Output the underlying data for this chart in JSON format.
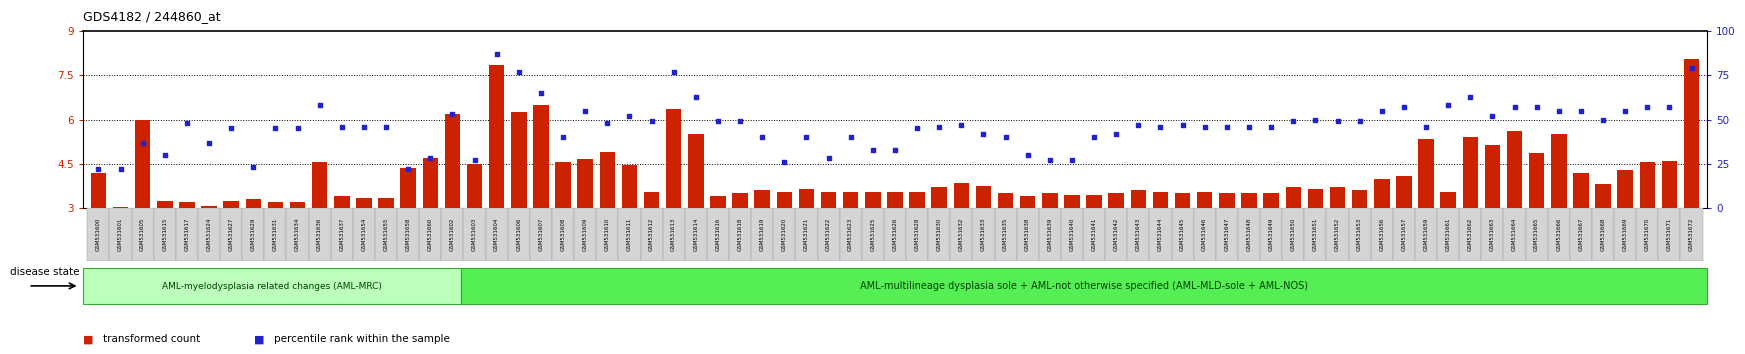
{
  "title": "GDS4182 / 244860_at",
  "ylim_left": [
    3,
    9
  ],
  "ylim_right": [
    0,
    100
  ],
  "yticks_left": [
    3,
    4.5,
    6,
    7.5,
    9
  ],
  "yticks_right": [
    0,
    25,
    50,
    75,
    100
  ],
  "hlines": [
    4.5,
    6,
    7.5
  ],
  "bar_color": "#cc2200",
  "dot_color": "#2222cc",
  "bg_color": "#ffffff",
  "group1_label": "AML-myelodysplasia related changes (AML-MRC)",
  "group2_label": "AML-multilineage dysplasia sole + AML-not otherwise specified (AML-MLD-sole + AML-NOS)",
  "disease_state_label": "disease state",
  "legend_bar": "transformed count",
  "legend_dot": "percentile rank within the sample",
  "group1_color": "#bbffbb",
  "group2_color": "#55ee55",
  "group1_n": 17,
  "samples": [
    "GSM531600",
    "GSM531601",
    "GSM531605",
    "GSM531615",
    "GSM531617",
    "GSM531624",
    "GSM531627",
    "GSM531629",
    "GSM531631",
    "GSM531634",
    "GSM531636",
    "GSM531637",
    "GSM531654",
    "GSM531655",
    "GSM531658",
    "GSM531660",
    "GSM531602",
    "GSM531603",
    "GSM531604",
    "GSM531606",
    "GSM531607",
    "GSM531608",
    "GSM531609",
    "GSM531610",
    "GSM531611",
    "GSM531612",
    "GSM531613",
    "GSM531614",
    "GSM531616",
    "GSM531618",
    "GSM531619",
    "GSM531620",
    "GSM531621",
    "GSM531622",
    "GSM531623",
    "GSM531625",
    "GSM531626",
    "GSM531628",
    "GSM531630",
    "GSM531632",
    "GSM531633",
    "GSM531635",
    "GSM531638",
    "GSM531639",
    "GSM531640",
    "GSM531641",
    "GSM531642",
    "GSM531643",
    "GSM531644",
    "GSM531645",
    "GSM531646",
    "GSM531647",
    "GSM531648",
    "GSM531649",
    "GSM531650",
    "GSM531651",
    "GSM531652",
    "GSM531653",
    "GSM531656",
    "GSM531657",
    "GSM531659",
    "GSM531661",
    "GSM531662",
    "GSM531663",
    "GSM531664",
    "GSM531665",
    "GSM531666",
    "GSM531667",
    "GSM531668",
    "GSM531669",
    "GSM531670",
    "GSM531671",
    "GSM531672"
  ],
  "bar_values": [
    4.2,
    3.05,
    6.0,
    3.25,
    3.2,
    3.08,
    3.25,
    3.3,
    3.2,
    3.2,
    4.55,
    3.4,
    3.35,
    3.35,
    4.35,
    4.7,
    6.2,
    4.5,
    7.85,
    6.25,
    6.5,
    4.55,
    4.65,
    4.9,
    4.45,
    3.55,
    6.35,
    5.5,
    3.4,
    3.5,
    3.6,
    3.55,
    3.65,
    3.55,
    3.55,
    3.55,
    3.55,
    3.55,
    3.7,
    3.85,
    3.75,
    3.5,
    3.4,
    3.5,
    3.45,
    3.45,
    3.5,
    3.6,
    3.55,
    3.5,
    3.55,
    3.5,
    3.5,
    3.5,
    3.7,
    3.65,
    3.7,
    3.6,
    4.0,
    4.1,
    5.35,
    3.55,
    5.4,
    5.15,
    5.6,
    4.85,
    5.5,
    4.2,
    3.8,
    4.3,
    4.55,
    4.6,
    8.05
  ],
  "dot_values_pct": [
    22,
    22,
    37,
    30,
    48,
    37,
    45,
    23,
    45,
    45,
    58,
    46,
    46,
    46,
    22,
    28,
    53,
    27,
    87,
    77,
    65,
    40,
    55,
    48,
    52,
    49,
    77,
    63,
    49,
    49,
    40,
    26,
    40,
    28,
    40,
    33,
    33,
    45,
    46,
    47,
    42,
    40,
    30,
    27,
    27,
    40,
    42,
    47,
    46,
    47,
    46,
    46,
    46,
    46,
    49,
    50,
    49,
    49,
    55,
    57,
    46,
    58,
    63,
    52,
    57,
    57,
    55,
    55,
    50,
    55,
    57,
    57,
    79
  ]
}
